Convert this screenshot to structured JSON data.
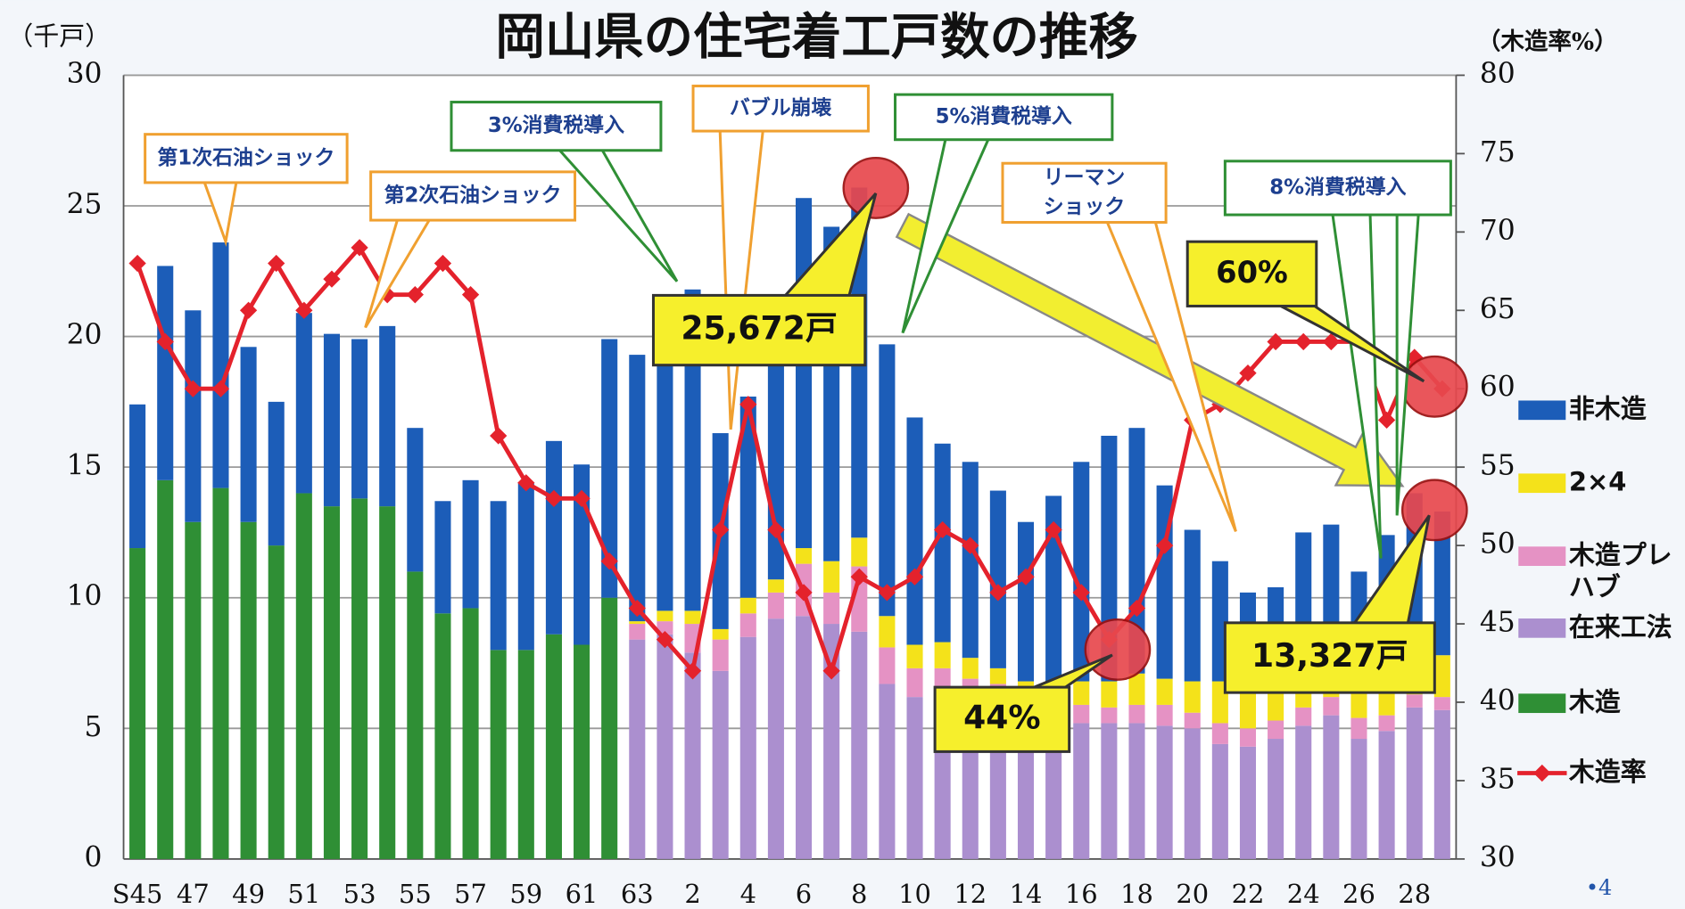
{
  "chart_data": {
    "type": "bar",
    "title": "岡山県の住宅着工戸数の推移",
    "y_label": "（千戸）",
    "y2_label": "（木造率%）",
    "page_number": "•4",
    "categories": [
      "S45",
      null,
      "47",
      null,
      "49",
      null,
      "51",
      null,
      "53",
      null,
      "55",
      null,
      "57",
      null,
      "59",
      null,
      "61",
      null,
      "63",
      null,
      "2",
      null,
      "4",
      null,
      "6",
      null,
      "8",
      null,
      "10",
      null,
      "12",
      null,
      "14",
      null,
      "16",
      null,
      "18",
      null,
      "20",
      null,
      "22",
      null,
      "24",
      null,
      "26",
      null,
      "28",
      null
    ],
    "series": [
      {
        "name": "非木造",
        "color": "#1c5db8",
        "values": [
          5.5,
          8.2,
          8.1,
          9.4,
          6.7,
          5.5,
          6.9,
          6.6,
          6.1,
          6.9,
          5.5,
          4.3,
          4.9,
          5.7,
          6.4,
          7.4,
          6.9,
          9.9,
          10.2,
          12.1,
          12.3,
          7.5,
          7.7,
          9.3,
          13.4,
          12.8,
          13.4,
          10.4,
          8.7,
          7.6,
          7.5,
          6.8,
          6.1,
          7.1,
          8.4,
          9.4,
          9.4,
          7.4,
          5.8,
          4.6,
          3.8,
          3.7,
          5.4,
          5.2,
          4.4,
          5.5,
          6.2,
          5.5
        ]
      },
      {
        "name": "2×4",
        "color": "#f4e21a",
        "values": [
          null,
          null,
          null,
          null,
          null,
          null,
          null,
          null,
          null,
          null,
          null,
          null,
          null,
          null,
          null,
          null,
          null,
          null,
          0.1,
          0.4,
          0.5,
          0.4,
          0.6,
          0.5,
          0.6,
          1.2,
          1.1,
          1.2,
          0.9,
          1.0,
          0.8,
          0.6,
          0.6,
          0.7,
          0.9,
          1.0,
          1.2,
          1.0,
          1.2,
          1.6,
          1.4,
          1.4,
          1.3,
          1.4,
          1.2,
          1.4,
          1.5,
          1.6
        ]
      },
      {
        "name": "木造プレハブ",
        "color": "#e592c4",
        "values": [
          null,
          null,
          null,
          null,
          null,
          null,
          null,
          null,
          null,
          null,
          null,
          null,
          null,
          null,
          null,
          null,
          null,
          null,
          0.6,
          0.5,
          1.1,
          1.2,
          0.9,
          1.0,
          2.0,
          1.2,
          2.5,
          1.4,
          1.1,
          1.0,
          0.9,
          0.9,
          0.7,
          0.7,
          0.7,
          0.6,
          0.7,
          0.8,
          0.6,
          0.8,
          0.7,
          0.7,
          0.7,
          0.7,
          0.8,
          0.6,
          0.5,
          0.5
        ]
      },
      {
        "name": "在来工法",
        "color": "#ab8fcf",
        "values": [
          null,
          null,
          null,
          null,
          null,
          null,
          null,
          null,
          null,
          null,
          null,
          null,
          null,
          null,
          null,
          null,
          null,
          null,
          8.4,
          8.6,
          7.9,
          7.2,
          8.5,
          9.2,
          9.3,
          9.0,
          8.7,
          6.7,
          6.2,
          6.3,
          6.0,
          5.8,
          5.5,
          5.4,
          5.2,
          5.2,
          5.2,
          5.1,
          5.0,
          4.4,
          4.3,
          4.6,
          5.1,
          5.5,
          4.6,
          4.9,
          5.8,
          5.7
        ]
      },
      {
        "name": "木造",
        "color": "#2f8f35",
        "values": [
          11.9,
          14.5,
          12.9,
          14.2,
          12.9,
          12.0,
          14.0,
          13.5,
          13.8,
          13.5,
          11.0,
          9.4,
          9.6,
          8.0,
          8.0,
          8.6,
          8.2,
          10.0,
          null,
          null,
          null,
          null,
          null,
          null,
          null,
          null,
          null,
          null,
          null,
          null,
          null,
          null,
          null,
          null,
          null,
          null,
          null,
          null,
          null,
          null,
          null,
          null,
          null,
          null,
          null,
          null,
          null,
          null
        ]
      },
      {
        "name": "木造率",
        "color": "#e4222c",
        "axis": "y2",
        "type": "line",
        "values": [
          68,
          63,
          60,
          60,
          65,
          68,
          65,
          67,
          69,
          66,
          66,
          68,
          66,
          57,
          54,
          53,
          53,
          49,
          46,
          44,
          42,
          51,
          59,
          51,
          47,
          42,
          48,
          47,
          48,
          51,
          50,
          47,
          48,
          51,
          47,
          44,
          46,
          50,
          58,
          59,
          61,
          63,
          63,
          63,
          63,
          58,
          62,
          60
        ]
      }
    ],
    "ylim": [
      0,
      30
    ],
    "yticks": [
      0,
      5,
      10,
      15,
      20,
      25,
      30
    ],
    "y2lim": [
      30,
      80
    ],
    "y2ticks": [
      30,
      35,
      40,
      45,
      50,
      55,
      60,
      65,
      70,
      75,
      80
    ],
    "grid": true,
    "annotations": [
      "第1次石油ショック",
      "第2次石油ショック",
      "3%消費税導入",
      "バブル崩壊",
      "5%消費税導入",
      "リーマン",
      "ショック",
      "8%消費税導入",
      "25,672戸",
      "13,327戸",
      "44%",
      "60%"
    ]
  }
}
